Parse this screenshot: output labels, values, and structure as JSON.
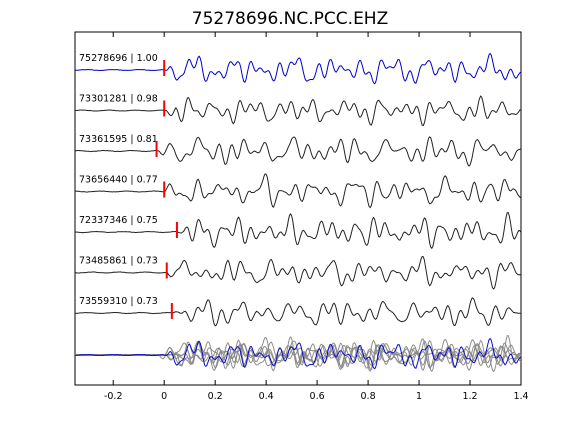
{
  "chart_data": {
    "type": "line",
    "title": "75278696.NC.PCC.EHZ",
    "xlabel": "",
    "ylabel": "",
    "xlim": [
      -0.35,
      1.4
    ],
    "xticks": [
      -0.2,
      0,
      0.2,
      0.4,
      0.6,
      0.8,
      1,
      1.2,
      1.4
    ],
    "xtick_labels": [
      "-0.2",
      "0",
      "0.2",
      "0.4",
      "0.6",
      "0.8",
      "1",
      "1.2",
      "1.4"
    ],
    "grid": false,
    "series": [
      {
        "name": "75278696 | 1.00",
        "pick_time": 0.0,
        "color": "#0000cc",
        "seed": 1
      },
      {
        "name": "73301281 | 0.98",
        "pick_time": 0.0,
        "color": "#222222",
        "seed": 2
      },
      {
        "name": "73361595 | 0.81",
        "pick_time": -0.03,
        "color": "#222222",
        "seed": 3
      },
      {
        "name": "73656440 | 0.77",
        "pick_time": 0.0,
        "color": "#222222",
        "seed": 4
      },
      {
        "name": "72337346 | 0.75",
        "pick_time": 0.05,
        "color": "#222222",
        "seed": 5
      },
      {
        "name": "73485861 | 0.73",
        "pick_time": 0.01,
        "color": "#222222",
        "seed": 6
      },
      {
        "name": "73559310 | 0.73",
        "pick_time": 0.03,
        "color": "#222222",
        "seed": 7
      }
    ],
    "stack": {
      "ref_color": "#0000cc",
      "other_color": "#888888"
    },
    "pick_color": "#ff0000"
  }
}
